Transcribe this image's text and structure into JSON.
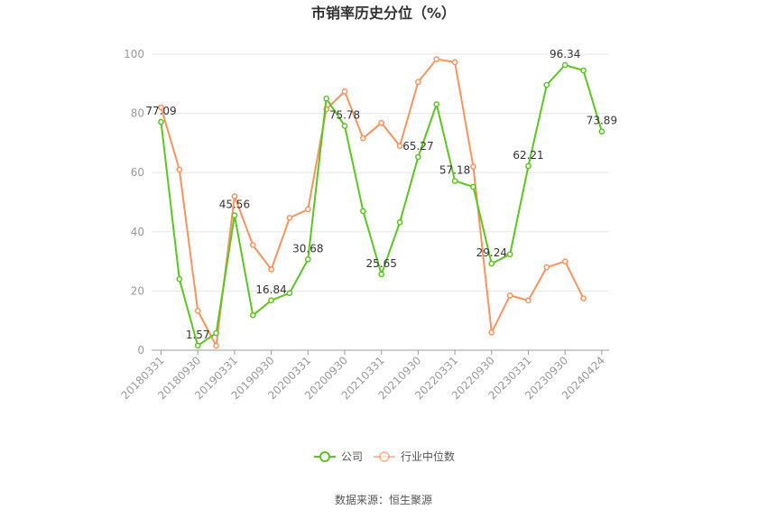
{
  "chart_data": {
    "type": "line",
    "title": "市销率历史分位（%）",
    "xlabel": "",
    "ylabel": "",
    "ylim": [
      0,
      100
    ],
    "yticks": [
      0,
      20,
      40,
      60,
      80,
      100
    ],
    "x": [
      "20180331",
      "20180630",
      "20180930",
      "20181231",
      "20190331",
      "20190630",
      "20190930",
      "20191231",
      "20200331",
      "20200630",
      "20200930",
      "20201231",
      "20210331",
      "20210630",
      "20210930",
      "20211231",
      "20220331",
      "20220630",
      "20220930",
      "20221231",
      "20230331",
      "20230630",
      "20230930",
      "20231231",
      "20240424"
    ],
    "xtick_labels": [
      "20180331",
      "20180930",
      "20190331",
      "20190930",
      "20200331",
      "20200930",
      "20210331",
      "20210930",
      "20220331",
      "20220930",
      "20230331",
      "20230930",
      "20240424"
    ],
    "series": [
      {
        "name": "公司",
        "color": "#5cc520",
        "values": [
          77.09,
          24.0,
          1.57,
          5.8,
          45.56,
          11.8,
          16.84,
          19.3,
          30.68,
          85.0,
          75.78,
          47.0,
          25.65,
          43.2,
          65.27,
          83.1,
          57.18,
          55.2,
          29.24,
          32.4,
          62.21,
          89.6,
          96.34,
          94.5,
          73.89
        ],
        "labels": {
          "0": "77.09",
          "2": "1.57",
          "4": "45.56",
          "6": "16.84",
          "8": "30.68",
          "10": "75.78",
          "12": "25.65",
          "14": "65.27",
          "16": "57.18",
          "18": "29.24",
          "20": "62.21",
          "22": "96.34",
          "24": "73.89"
        }
      },
      {
        "name": "行业中位数",
        "color": "#f5945e",
        "values": [
          82.0,
          61.0,
          13.3,
          1.5,
          52.0,
          35.5,
          27.3,
          44.7,
          47.6,
          81.4,
          87.4,
          71.6,
          76.8,
          69.0,
          90.6,
          98.3,
          97.3,
          62.0,
          6.0,
          18.5,
          16.8,
          28.0,
          30.0,
          17.5,
          null
        ]
      }
    ],
    "legend": {
      "position": "bottom",
      "items": [
        "公司",
        "行业中位数"
      ]
    },
    "grid": true
  },
  "source": "数据来源：恒生聚源"
}
